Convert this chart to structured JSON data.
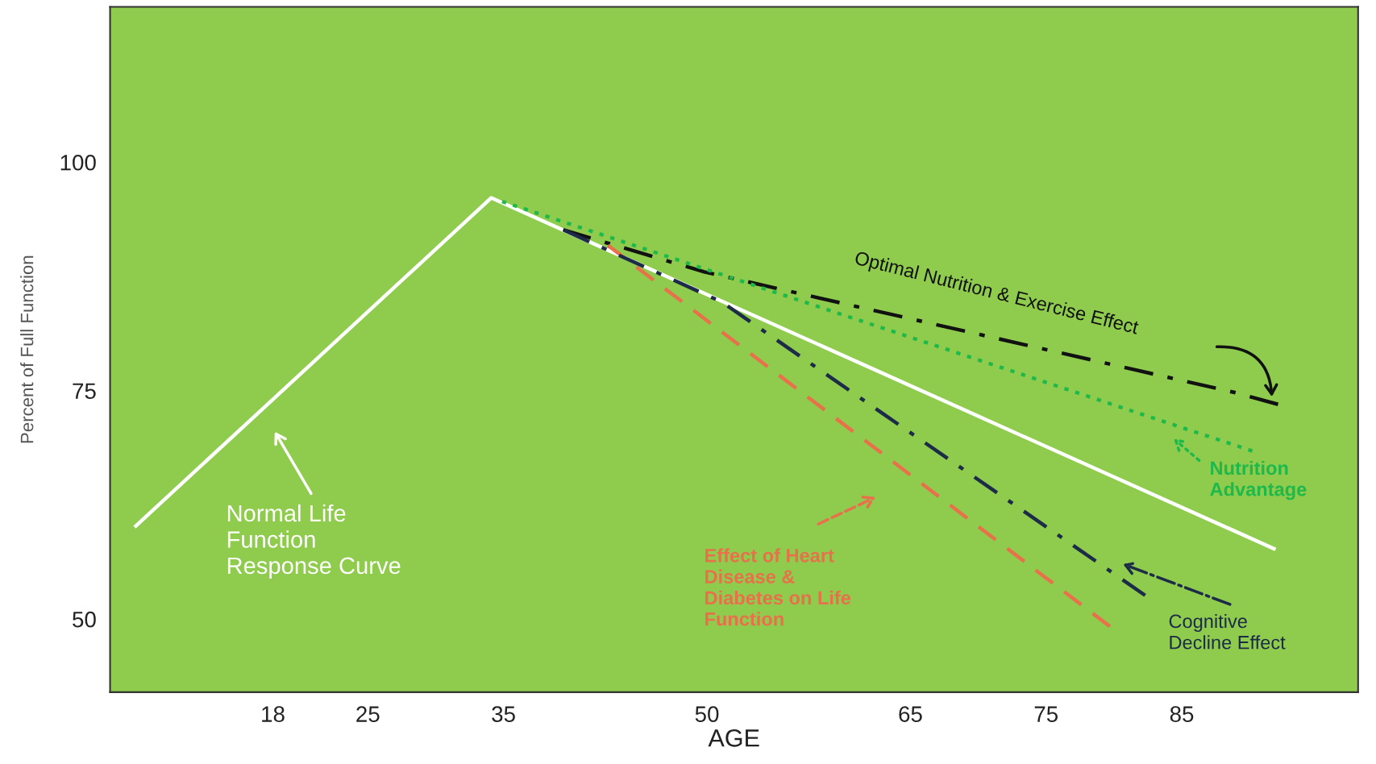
{
  "chart_data": {
    "type": "line",
    "xlabel": "AGE",
    "ylabel": "Percent of Full Function",
    "xlim": [
      6,
      98
    ],
    "ylim": [
      42,
      117
    ],
    "xticks": [
      18,
      25,
      35,
      50,
      65,
      75,
      85
    ],
    "yticks": [
      50,
      75,
      100
    ],
    "grid": false,
    "legend": false,
    "marker": "none",
    "series": [
      {
        "name": "Normal Life Function Response Curve",
        "color": "#ffffff",
        "line_style": "solid",
        "x": [
          7.9,
          34.1,
          91.8
        ],
        "values": [
          60.2,
          96.1,
          57.7
        ]
      },
      {
        "name": "Optimal Nutrition & Exercise Effect",
        "color": "#111111",
        "line_style": "dashdot",
        "x": [
          39.4,
          49.8,
          88.9,
          92.1
        ],
        "values": [
          92.6,
          88.0,
          74.8,
          73.5
        ]
      },
      {
        "name": "Nutrition Advantage",
        "color": "#1fb84a",
        "line_style": "dotted",
        "x": [
          34.9,
          90.2
        ],
        "values": [
          95.7,
          68.4
        ]
      },
      {
        "name": "Effect of Heart Disease & Diabetes on Life Function",
        "color": "#e8704a",
        "line_style": "dashed",
        "x": [
          42.7,
          79.7
        ],
        "values": [
          90.9,
          49.2
        ]
      },
      {
        "name": "Cognitive Decline Effect",
        "color": "#1c2b48",
        "line_style": "dashdot",
        "x": [
          39.4,
          51.1,
          82.3
        ],
        "values": [
          92.6,
          84.7,
          52.6
        ]
      }
    ]
  }
}
